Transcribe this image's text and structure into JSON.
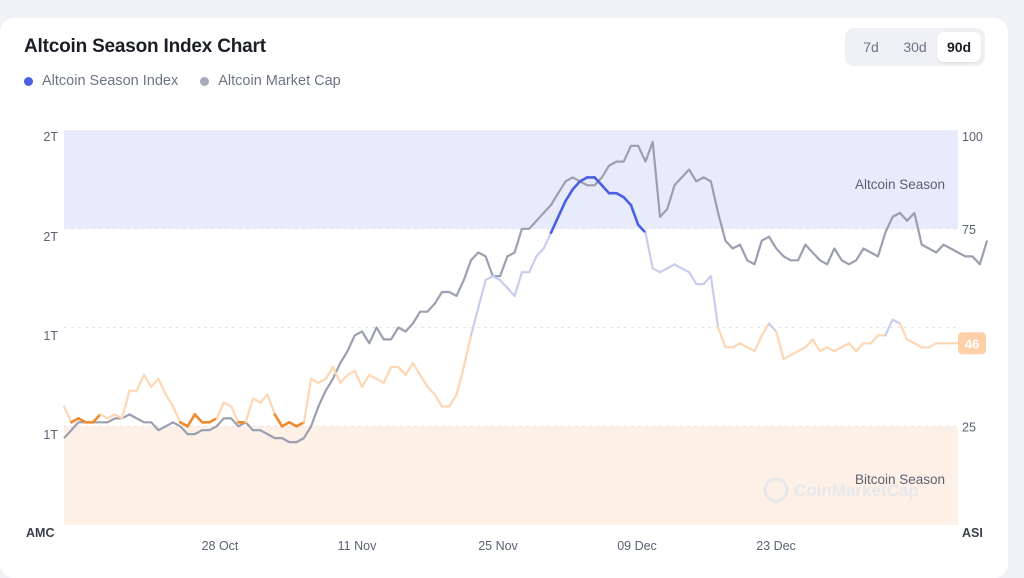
{
  "header": {
    "title": "Altcoin Season Index Chart",
    "ranges": [
      "7d",
      "30d",
      "90d"
    ],
    "active_range": "90d"
  },
  "legend": [
    {
      "label": "Altcoin Season Index",
      "color": "#4a5fe2"
    },
    {
      "label": "Altcoin Market Cap",
      "color": "#a6abb8"
    }
  ],
  "colors": {
    "altcoin_zone": "#e8ebfc",
    "bitcoin_zone": "#fdf0e6",
    "altcoin_line_active": "#4a5fe2",
    "index_line_light": "#c8cdee",
    "bitcoin_line_light": "#fdd7b3",
    "bitcoin_line_active": "#f08a2e",
    "market_cap_line": "#9ba0b0",
    "badge": "#fdd0a8"
  },
  "watermark": "CoinMarketCap",
  "chart_data": {
    "type": "line",
    "zones": [
      {
        "label": "Altcoin Season",
        "from": 75,
        "to": 100
      },
      {
        "label": "Bitcoin Season",
        "from": 0,
        "to": 25
      }
    ],
    "x_ticks": [
      "28 Oct",
      "11 Nov",
      "25 Nov",
      "09 Dec",
      "23 Dec"
    ],
    "x_axis_label_left": "AMC",
    "x_axis_label_right": "ASI",
    "y_left_ticks": [
      "2T",
      "2T",
      "1T",
      "1T"
    ],
    "y_right_ticks": [
      100,
      75,
      25
    ],
    "y_right_range": [
      0,
      100
    ],
    "current_value": 46,
    "series": [
      {
        "name": "Altcoin Season Index",
        "axis": "right",
        "values": [
          30,
          26,
          27,
          26,
          26,
          28,
          27,
          28,
          27,
          34,
          34,
          38,
          35,
          37,
          33,
          30,
          26,
          25,
          28,
          26,
          26,
          27,
          31,
          30,
          26,
          26,
          32,
          31,
          33,
          28,
          25,
          26,
          25,
          26,
          37,
          36,
          37,
          40,
          36,
          38,
          39,
          35,
          38,
          37,
          36,
          40,
          40,
          38,
          41,
          38,
          35,
          33,
          30,
          30,
          33,
          40,
          48,
          55,
          62,
          63,
          62,
          60,
          58,
          64,
          64,
          68,
          70,
          74,
          78,
          82,
          85,
          87,
          88,
          88,
          86,
          84,
          84,
          83,
          81,
          76,
          74,
          65,
          64,
          65,
          66,
          65,
          64,
          61,
          61,
          63,
          50,
          45,
          45,
          46,
          45,
          44,
          48,
          51,
          49,
          42,
          43,
          44,
          45,
          47,
          44,
          45,
          44,
          45,
          46,
          44,
          46,
          46,
          48,
          48,
          52,
          51,
          47,
          46,
          45,
          45,
          46,
          46,
          46,
          46
        ]
      },
      {
        "name": "Altcoin Market Cap",
        "axis": "left",
        "values": [
          22,
          24,
          26,
          26,
          26,
          26,
          26,
          27,
          27,
          28,
          27,
          26,
          26,
          24,
          25,
          26,
          25,
          23,
          23,
          24,
          24,
          25,
          27,
          27,
          25,
          26,
          24,
          24,
          23,
          22,
          22,
          21,
          21,
          22,
          25,
          30,
          34,
          37,
          41,
          44,
          48,
          49,
          46,
          50,
          47,
          47,
          50,
          49,
          51,
          54,
          54,
          56,
          59,
          59,
          58,
          62,
          67,
          69,
          68,
          63,
          63,
          68,
          69,
          75,
          75,
          77,
          79,
          81,
          84,
          87,
          88,
          87,
          86,
          86,
          88,
          91,
          92,
          92,
          96,
          96,
          92,
          97,
          78,
          80,
          86,
          88,
          90,
          87,
          88,
          87,
          79,
          72,
          70,
          71,
          67,
          66,
          72,
          73,
          70,
          68,
          67,
          67,
          71,
          69,
          67,
          66,
          70,
          67,
          66,
          67,
          70,
          69,
          68,
          74,
          78,
          79,
          77,
          79,
          71,
          70,
          69,
          71,
          70,
          69,
          68,
          68,
          66,
          72
        ]
      }
    ]
  }
}
